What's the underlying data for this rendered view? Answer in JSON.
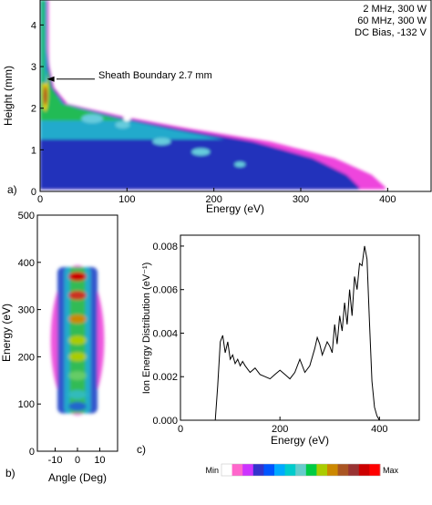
{
  "chart_data": [
    {
      "panel": "a)",
      "type": "heatmap",
      "xlabel": "Energy (eV)",
      "ylabel": "Height (mm)",
      "xlim": [
        0,
        450
      ],
      "ylim": [
        0,
        4.6
      ],
      "xticks": [
        0,
        100,
        200,
        300,
        400
      ],
      "yticks": [
        0,
        1,
        2,
        3,
        4
      ],
      "conditions": [
        "2 MHz, 300 W",
        "60 MHz, 300 W",
        "DC Bias, -132 V"
      ],
      "annotation": {
        "text": "Sheath Boundary 2.7 mm",
        "x": 8,
        "y": 2.7
      },
      "sheath_edge": [
        {
          "h": 4.6,
          "e": 6
        },
        {
          "h": 4.0,
          "e": 6
        },
        {
          "h": 3.5,
          "e": 8
        },
        {
          "h": 3.0,
          "e": 10
        },
        {
          "h": 2.5,
          "e": 15
        },
        {
          "h": 2.1,
          "e": 30
        },
        {
          "h": 1.8,
          "e": 90
        },
        {
          "h": 1.5,
          "e": 165
        },
        {
          "h": 1.2,
          "e": 250
        },
        {
          "h": 0.8,
          "e": 320
        },
        {
          "h": 0.4,
          "e": 360
        },
        {
          "h": 0.1,
          "e": 375
        }
      ]
    },
    {
      "panel": "b)",
      "type": "heatmap",
      "xlabel": "Angle (Deg)",
      "ylabel": "Energy (eV)",
      "xlim": [
        -18,
        18
      ],
      "ylim": [
        0,
        500
      ],
      "xticks": [
        -10,
        0,
        10
      ],
      "yticks": [
        0,
        100,
        200,
        300,
        400,
        500
      ],
      "energy_range": [
        80,
        390
      ],
      "bright_bands_eV": [
        370,
        330,
        280,
        235,
        200,
        160,
        120,
        95
      ]
    },
    {
      "panel": "c)",
      "type": "line",
      "xlabel": "Energy (eV)",
      "ylabel": "Ion Energy Distribution (eV⁻¹)",
      "xlim": [
        0,
        480
      ],
      "ylim": [
        0,
        0.0085
      ],
      "xticks": [
        0,
        200,
        400
      ],
      "yticks": [
        0,
        0.002,
        0.004,
        0.006,
        0.008
      ],
      "ytick_labels": [
        "0.000",
        "0.002",
        "0.004",
        "0.006",
        "0.008"
      ],
      "x": [
        70,
        75,
        80,
        85,
        90,
        95,
        100,
        105,
        110,
        115,
        120,
        125,
        130,
        140,
        150,
        160,
        170,
        180,
        190,
        200,
        210,
        220,
        230,
        240,
        250,
        260,
        270,
        275,
        280,
        285,
        290,
        295,
        300,
        305,
        310,
        315,
        320,
        325,
        330,
        335,
        340,
        345,
        350,
        355,
        360,
        365,
        370,
        375,
        380,
        385,
        390,
        395,
        400
      ],
      "y": [
        0.0,
        0.0016,
        0.0036,
        0.0039,
        0.0031,
        0.0036,
        0.0028,
        0.003,
        0.0026,
        0.0028,
        0.0025,
        0.0027,
        0.0025,
        0.0022,
        0.0024,
        0.0021,
        0.002,
        0.0019,
        0.0021,
        0.0023,
        0.0021,
        0.0019,
        0.0022,
        0.0028,
        0.0022,
        0.0025,
        0.0033,
        0.0038,
        0.0035,
        0.003,
        0.0033,
        0.0036,
        0.0034,
        0.0031,
        0.0044,
        0.0035,
        0.0048,
        0.0041,
        0.0054,
        0.0044,
        0.006,
        0.0048,
        0.0066,
        0.006,
        0.0072,
        0.0071,
        0.008,
        0.0074,
        0.0045,
        0.0018,
        0.0006,
        0.0002,
        0.0
      ]
    },
    {
      "type": "colorbar",
      "min_label": "Min",
      "max_label": "Max",
      "colors": [
        "#ffffff",
        "#ff66cc",
        "#cc33ff",
        "#3333cc",
        "#0055ff",
        "#00aaff",
        "#00cccc",
        "#66cccc",
        "#00cc44",
        "#aacc00",
        "#cc8800",
        "#aa5522",
        "#993333",
        "#cc0000",
        "#ff0000"
      ]
    }
  ]
}
